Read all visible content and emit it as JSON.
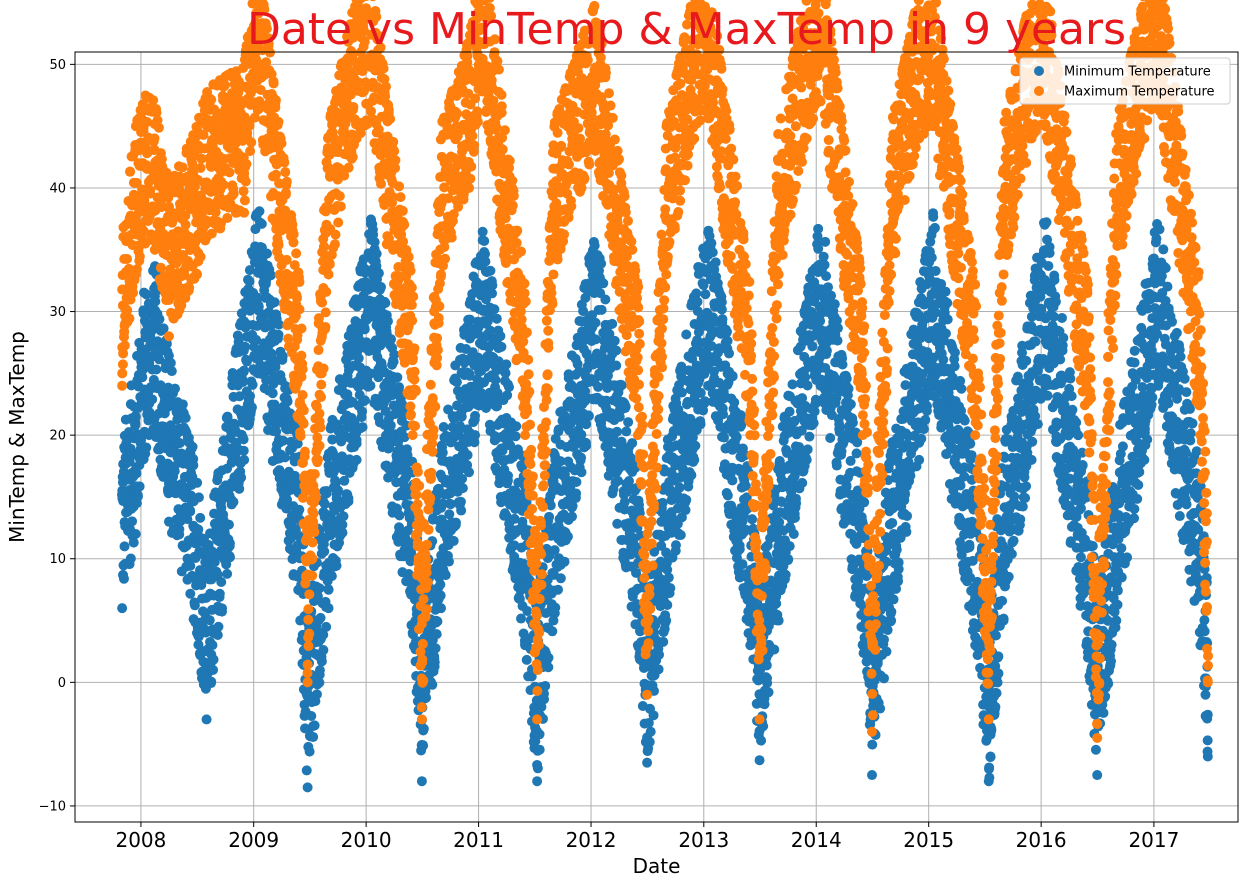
{
  "chart_data": {
    "type": "scatter",
    "title": "Date vs MinTemp & MaxTemp in 9 years",
    "title_color": "#e8191c",
    "xlabel": "Date",
    "ylabel": "MinTemp & MaxTemp",
    "xlim": [
      "2007-06-01",
      "2017-10-01"
    ],
    "ylim": [
      -11.3,
      51.0
    ],
    "x_ticks": [
      "2008",
      "2009",
      "2010",
      "2011",
      "2012",
      "2013",
      "2014",
      "2015",
      "2016",
      "2017"
    ],
    "y_ticks": [
      -10,
      0,
      10,
      20,
      30,
      40,
      50
    ],
    "grid": true,
    "legend_position": "top-right",
    "series": [
      {
        "name": "Minimum Temperature",
        "color": "#1f77b4",
        "x": [
          "2007-11-01",
          "2007-12-15",
          "2008-01-15",
          "2008-02-15",
          "2008-04-01",
          "2008-07-01",
          "2008-08-01",
          "2008-12-01",
          "2009-01-15",
          "2009-06-01",
          "2009-06-25",
          "2009-09-01",
          "2009-12-01",
          "2010-01-15",
          "2010-06-01",
          "2010-07-01",
          "2010-09-01",
          "2010-12-01",
          "2011-01-15",
          "2011-06-01",
          "2011-07-10",
          "2011-09-01",
          "2011-12-01",
          "2012-01-15",
          "2012-06-01",
          "2012-07-01",
          "2012-09-01",
          "2012-12-01",
          "2013-01-15",
          "2013-06-01",
          "2013-07-01",
          "2013-09-01",
          "2013-12-01",
          "2014-01-15",
          "2014-06-01",
          "2014-07-01",
          "2014-09-01",
          "2014-12-01",
          "2015-01-15",
          "2015-06-01",
          "2015-07-15",
          "2015-09-01",
          "2015-12-01",
          "2016-01-15",
          "2016-06-01",
          "2016-07-01",
          "2016-09-01",
          "2016-12-01",
          "2017-01-15",
          "2017-06-01",
          "2017-06-25"
        ],
        "y": [
          6.0,
          12.0,
          18.5,
          20.0,
          13.0,
          4.0,
          -3.0,
          18.0,
          25.0,
          5.0,
          -8.5,
          6.0,
          18.0,
          24.0,
          4.0,
          -8.0,
          6.0,
          17.0,
          23.0,
          3.0,
          -8.0,
          5.0,
          17.0,
          23.0,
          3.0,
          -6.5,
          5.0,
          18.0,
          24.0,
          3.0,
          -6.3,
          5.0,
          18.0,
          24.0,
          3.0,
          -7.5,
          5.0,
          18.0,
          24.0,
          3.0,
          -8.0,
          5.0,
          18.0,
          24.0,
          2.0,
          -7.5,
          5.0,
          18.0,
          24.0,
          3.0,
          -6.0
        ]
      },
      {
        "name": "Maximum Temperature",
        "color": "#ff7f0e",
        "x": [
          "2007-11-01",
          "2007-12-15",
          "2008-01-15",
          "2008-02-15",
          "2008-04-01",
          "2008-07-01",
          "2008-08-01",
          "2008-12-01",
          "2009-01-15",
          "2009-06-01",
          "2009-06-25",
          "2009-09-01",
          "2009-12-01",
          "2010-01-15",
          "2010-06-01",
          "2010-07-01",
          "2010-09-01",
          "2010-12-01",
          "2011-01-15",
          "2011-06-01",
          "2011-07-10",
          "2011-09-01",
          "2011-12-01",
          "2012-01-15",
          "2012-06-01",
          "2012-07-01",
          "2012-09-01",
          "2012-12-01",
          "2013-01-15",
          "2013-06-01",
          "2013-07-01",
          "2013-09-01",
          "2013-12-01",
          "2014-01-15",
          "2014-06-01",
          "2014-07-01",
          "2014-09-01",
          "2014-12-01",
          "2015-01-15",
          "2015-06-01",
          "2015-07-15",
          "2015-09-01",
          "2015-12-01",
          "2016-01-15",
          "2016-06-01",
          "2016-07-01",
          "2016-09-01",
          "2016-12-01",
          "2017-01-15",
          "2017-06-01",
          "2017-06-25"
        ],
        "y": [
          24.0,
          33.0,
          35.5,
          35.0,
          28.0,
          33.0,
          36.0,
          38.0,
          46.5,
          20.0,
          0.0,
          33.0,
          44.0,
          45.5,
          20.0,
          -3.0,
          33.0,
          40.0,
          48.0,
          20.0,
          -3.0,
          33.0,
          40.0,
          43.0,
          20.0,
          -1.0,
          33.0,
          44.0,
          46.0,
          20.0,
          -3.0,
          33.0,
          44.0,
          47.0,
          20.0,
          -4.0,
          33.0,
          44.0,
          45.0,
          20.0,
          -3.0,
          33.0,
          44.0,
          45.0,
          20.0,
          -4.5,
          33.0,
          44.0,
          47.0,
          20.0,
          0.0
        ]
      }
    ]
  }
}
